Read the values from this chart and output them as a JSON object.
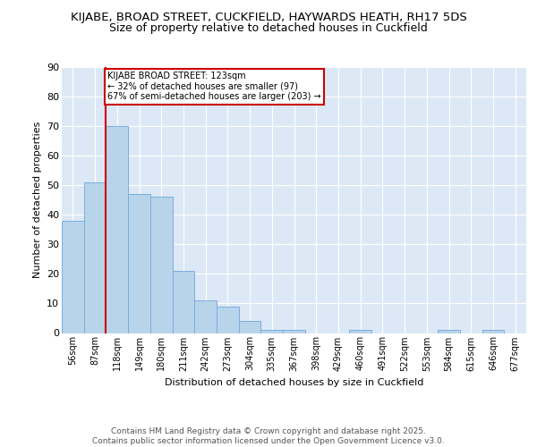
{
  "title": "KIJABE, BROAD STREET, CUCKFIELD, HAYWARDS HEATH, RH17 5DS",
  "subtitle": "Size of property relative to detached houses in Cuckfield",
  "xlabel": "Distribution of detached houses by size in Cuckfield",
  "ylabel": "Number of detached properties",
  "categories": [
    "56sqm",
    "87sqm",
    "118sqm",
    "149sqm",
    "180sqm",
    "211sqm",
    "242sqm",
    "273sqm",
    "304sqm",
    "335sqm",
    "367sqm",
    "398sqm",
    "429sqm",
    "460sqm",
    "491sqm",
    "522sqm",
    "553sqm",
    "584sqm",
    "615sqm",
    "646sqm",
    "677sqm"
  ],
  "values": [
    38,
    51,
    70,
    47,
    46,
    21,
    11,
    9,
    4,
    1,
    1,
    0,
    0,
    1,
    0,
    0,
    0,
    1,
    0,
    1,
    0
  ],
  "bar_color": "#b8d4ea",
  "bar_edge_color": "#7aade0",
  "plot_bg_color": "#dce8f5",
  "fig_bg_color": "#ffffff",
  "grid_color": "#ffffff",
  "property_line_color": "#cc0000",
  "property_line_x": 1.5,
  "property_label": "KIJABE BROAD STREET: 123sqm",
  "annotation_line1": "← 32% of detached houses are smaller (97)",
  "annotation_line2": "67% of semi-detached houses are larger (203) →",
  "annotation_box_color": "#ffffff",
  "annotation_box_edge": "#cc0000",
  "ylim": [
    0,
    90
  ],
  "yticks": [
    0,
    10,
    20,
    30,
    40,
    50,
    60,
    70,
    80,
    90
  ],
  "footer_line1": "Contains HM Land Registry data © Crown copyright and database right 2025.",
  "footer_line2": "Contains public sector information licensed under the Open Government Licence v3.0.",
  "title_fontsize": 9.5,
  "subtitle_fontsize": 9,
  "axis_fontsize": 8,
  "tick_fontsize": 7,
  "footer_fontsize": 6.5
}
